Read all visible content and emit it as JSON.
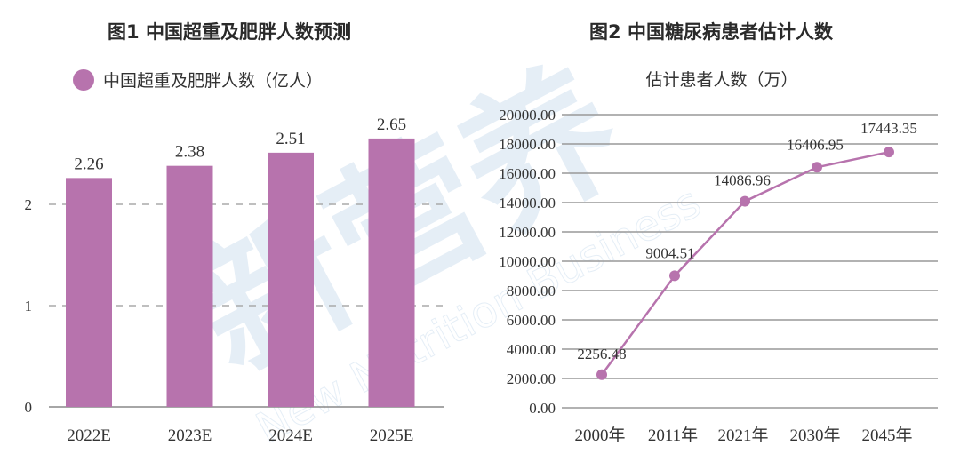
{
  "watermark": {
    "text": "新营养",
    "subtext": "New Nutrition Business"
  },
  "chart_data": [
    {
      "type": "bar",
      "title": "图1  中国超重及肥胖人数预测",
      "legend": "中国超重及肥胖人数（亿人）",
      "legend_placement": "top-left",
      "categories": [
        "2022E",
        "2023E",
        "2024E",
        "2025E"
      ],
      "values": [
        2.26,
        2.38,
        2.51,
        2.65
      ],
      "value_labels": [
        "2.26",
        "2.38",
        "2.51",
        "2.65"
      ],
      "yticks": [
        "0",
        "1",
        "2"
      ],
      "ylim": [
        0,
        3
      ],
      "grid": "dashed",
      "color": "#b773ad"
    },
    {
      "type": "line",
      "title": "图2  中国糖尿病患者估计人数",
      "series_name": "估计患者人数（万）",
      "categories": [
        "2000年",
        "2011年",
        "2021年",
        "2030年",
        "2045年"
      ],
      "values": [
        2256.48,
        9004.51,
        14086.96,
        16406.95,
        17443.35
      ],
      "value_labels": [
        "2256.48",
        "9004.51",
        "14086.96",
        "16406.95",
        "17443.35"
      ],
      "yticks": [
        "0.00",
        "2000.00",
        "4000.00",
        "6000.00",
        "8000.00",
        "10000.00",
        "12000.00",
        "14000.00",
        "16000.00",
        "18000.00",
        "20000.00"
      ],
      "ylim": [
        0,
        20000
      ],
      "grid": "solid",
      "color": "#b773ad"
    }
  ]
}
